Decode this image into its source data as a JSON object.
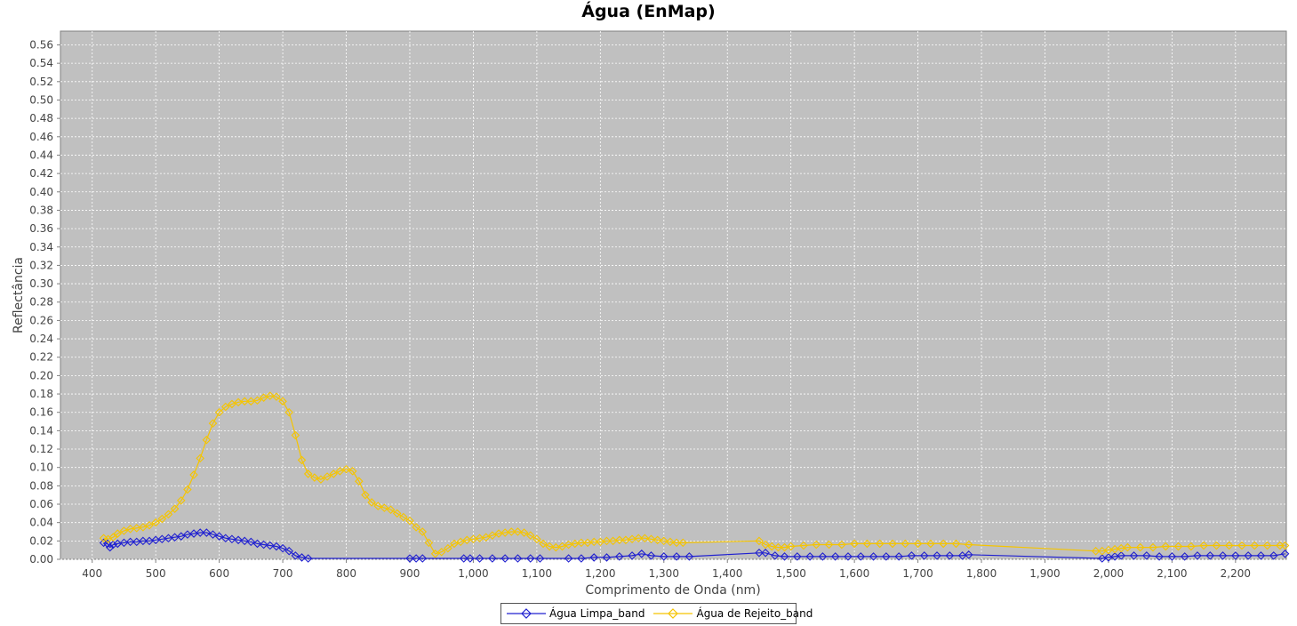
{
  "chart_data": {
    "type": "line",
    "title": "Água (EnMap)",
    "xlabel": "Comprimento de Onda (nm)",
    "ylabel": "Reflectância",
    "xlim": [
      350,
      2280
    ],
    "ylim": [
      0,
      0.575
    ],
    "xticks": [
      400,
      500,
      600,
      700,
      800,
      900,
      1000,
      1100,
      1200,
      1300,
      1400,
      1500,
      1600,
      1700,
      1800,
      1900,
      2000,
      2100,
      2200
    ],
    "xtick_labels": [
      "400",
      "500",
      "600",
      "700",
      "800",
      "900",
      "1,000",
      "1,100",
      "1,200",
      "1,300",
      "1,400",
      "1,500",
      "1,600",
      "1,700",
      "1,800",
      "1,900",
      "2,000",
      "2,100",
      "2,200"
    ],
    "yticks": [
      0,
      0.02,
      0.04,
      0.06,
      0.08,
      0.1,
      0.12,
      0.14,
      0.16,
      0.18,
      0.2,
      0.22,
      0.24,
      0.26,
      0.28,
      0.3,
      0.32,
      0.34,
      0.36,
      0.38,
      0.4,
      0.42,
      0.44,
      0.46,
      0.48,
      0.5,
      0.52,
      0.54,
      0.56
    ],
    "ytick_labels": [
      "0.00",
      "0.02",
      "0.04",
      "0.06",
      "0.08",
      "0.10",
      "0.12",
      "0.14",
      "0.16",
      "0.18",
      "0.20",
      "0.22",
      "0.24",
      "0.26",
      "0.28",
      "0.30",
      "0.32",
      "0.34",
      "0.36",
      "0.38",
      "0.40",
      "0.42",
      "0.44",
      "0.46",
      "0.48",
      "0.50",
      "0.52",
      "0.54",
      "0.56"
    ],
    "grid": true,
    "legend_position": "bottom",
    "background_color": "#c0c0c0",
    "series": [
      {
        "name": "Água Limpa_band",
        "color": "#2020d0",
        "marker": "diamond",
        "points": [
          [
            418,
            0.018
          ],
          [
            424,
            0.017
          ],
          [
            428,
            0.013
          ],
          [
            433,
            0.016
          ],
          [
            440,
            0.017
          ],
          [
            450,
            0.018
          ],
          [
            460,
            0.019
          ],
          [
            470,
            0.019
          ],
          [
            480,
            0.02
          ],
          [
            490,
            0.02
          ],
          [
            500,
            0.021
          ],
          [
            510,
            0.022
          ],
          [
            520,
            0.023
          ],
          [
            530,
            0.024
          ],
          [
            540,
            0.025
          ],
          [
            550,
            0.027
          ],
          [
            560,
            0.028
          ],
          [
            570,
            0.029
          ],
          [
            580,
            0.029
          ],
          [
            590,
            0.027
          ],
          [
            600,
            0.025
          ],
          [
            610,
            0.023
          ],
          [
            620,
            0.022
          ],
          [
            630,
            0.021
          ],
          [
            640,
            0.02
          ],
          [
            650,
            0.019
          ],
          [
            660,
            0.017
          ],
          [
            670,
            0.016
          ],
          [
            680,
            0.015
          ],
          [
            690,
            0.014
          ],
          [
            700,
            0.012
          ],
          [
            710,
            0.009
          ],
          [
            720,
            0.004
          ],
          [
            730,
            0.002
          ],
          [
            740,
            0.001
          ],
          [
            900,
            0.001
          ],
          [
            910,
            0.001
          ],
          [
            920,
            0.001
          ],
          [
            985,
            0.001
          ],
          [
            995,
            0.001
          ],
          [
            1010,
            0.001
          ],
          [
            1030,
            0.001
          ],
          [
            1050,
            0.001
          ],
          [
            1070,
            0.001
          ],
          [
            1090,
            0.001
          ],
          [
            1105,
            0.001
          ],
          [
            1150,
            0.001
          ],
          [
            1170,
            0.001
          ],
          [
            1190,
            0.002
          ],
          [
            1210,
            0.002
          ],
          [
            1230,
            0.003
          ],
          [
            1250,
            0.004
          ],
          [
            1265,
            0.006
          ],
          [
            1280,
            0.004
          ],
          [
            1300,
            0.003
          ],
          [
            1320,
            0.003
          ],
          [
            1340,
            0.003
          ],
          [
            1450,
            0.007
          ],
          [
            1460,
            0.007
          ],
          [
            1475,
            0.004
          ],
          [
            1490,
            0.003
          ],
          [
            1510,
            0.003
          ],
          [
            1530,
            0.003
          ],
          [
            1550,
            0.003
          ],
          [
            1570,
            0.003
          ],
          [
            1590,
            0.003
          ],
          [
            1610,
            0.003
          ],
          [
            1630,
            0.003
          ],
          [
            1650,
            0.003
          ],
          [
            1670,
            0.003
          ],
          [
            1690,
            0.004
          ],
          [
            1710,
            0.004
          ],
          [
            1730,
            0.004
          ],
          [
            1750,
            0.004
          ],
          [
            1770,
            0.004
          ],
          [
            1780,
            0.005
          ],
          [
            1990,
            0.001
          ],
          [
            2000,
            0.002
          ],
          [
            2010,
            0.003
          ],
          [
            2020,
            0.004
          ],
          [
            2040,
            0.004
          ],
          [
            2060,
            0.004
          ],
          [
            2080,
            0.003
          ],
          [
            2100,
            0.003
          ],
          [
            2120,
            0.003
          ],
          [
            2140,
            0.004
          ],
          [
            2160,
            0.004
          ],
          [
            2180,
            0.004
          ],
          [
            2200,
            0.004
          ],
          [
            2220,
            0.004
          ],
          [
            2240,
            0.004
          ],
          [
            2260,
            0.004
          ],
          [
            2278,
            0.006
          ]
        ]
      },
      {
        "name": "Água de Rejeito_band",
        "color": "#f5c400",
        "marker": "diamond",
        "points": [
          [
            418,
            0.023
          ],
          [
            425,
            0.022
          ],
          [
            433,
            0.024
          ],
          [
            440,
            0.028
          ],
          [
            450,
            0.031
          ],
          [
            460,
            0.033
          ],
          [
            470,
            0.034
          ],
          [
            480,
            0.035
          ],
          [
            490,
            0.037
          ],
          [
            500,
            0.04
          ],
          [
            510,
            0.044
          ],
          [
            520,
            0.049
          ],
          [
            530,
            0.055
          ],
          [
            540,
            0.064
          ],
          [
            550,
            0.076
          ],
          [
            560,
            0.092
          ],
          [
            570,
            0.11
          ],
          [
            580,
            0.13
          ],
          [
            590,
            0.148
          ],
          [
            600,
            0.16
          ],
          [
            610,
            0.166
          ],
          [
            620,
            0.169
          ],
          [
            630,
            0.171
          ],
          [
            640,
            0.172
          ],
          [
            650,
            0.172
          ],
          [
            660,
            0.173
          ],
          [
            670,
            0.176
          ],
          [
            680,
            0.178
          ],
          [
            690,
            0.177
          ],
          [
            700,
            0.172
          ],
          [
            710,
            0.16
          ],
          [
            720,
            0.135
          ],
          [
            730,
            0.108
          ],
          [
            740,
            0.093
          ],
          [
            750,
            0.089
          ],
          [
            760,
            0.087
          ],
          [
            770,
            0.09
          ],
          [
            780,
            0.093
          ],
          [
            790,
            0.096
          ],
          [
            800,
            0.098
          ],
          [
            810,
            0.096
          ],
          [
            820,
            0.085
          ],
          [
            830,
            0.07
          ],
          [
            840,
            0.062
          ],
          [
            850,
            0.058
          ],
          [
            860,
            0.056
          ],
          [
            870,
            0.054
          ],
          [
            880,
            0.05
          ],
          [
            890,
            0.046
          ],
          [
            900,
            0.042
          ],
          [
            910,
            0.035
          ],
          [
            920,
            0.03
          ],
          [
            930,
            0.018
          ],
          [
            940,
            0.006
          ],
          [
            950,
            0.008
          ],
          [
            960,
            0.012
          ],
          [
            970,
            0.017
          ],
          [
            980,
            0.019
          ],
          [
            990,
            0.021
          ],
          [
            1000,
            0.022
          ],
          [
            1010,
            0.023
          ],
          [
            1020,
            0.024
          ],
          [
            1030,
            0.026
          ],
          [
            1040,
            0.028
          ],
          [
            1050,
            0.029
          ],
          [
            1060,
            0.03
          ],
          [
            1070,
            0.03
          ],
          [
            1080,
            0.029
          ],
          [
            1090,
            0.026
          ],
          [
            1100,
            0.022
          ],
          [
            1110,
            0.017
          ],
          [
            1120,
            0.014
          ],
          [
            1130,
            0.013
          ],
          [
            1140,
            0.014
          ],
          [
            1150,
            0.016
          ],
          [
            1160,
            0.017
          ],
          [
            1170,
            0.018
          ],
          [
            1180,
            0.018
          ],
          [
            1190,
            0.019
          ],
          [
            1200,
            0.019
          ],
          [
            1210,
            0.02
          ],
          [
            1220,
            0.02
          ],
          [
            1230,
            0.021
          ],
          [
            1240,
            0.021
          ],
          [
            1250,
            0.022
          ],
          [
            1260,
            0.023
          ],
          [
            1270,
            0.023
          ],
          [
            1280,
            0.022
          ],
          [
            1290,
            0.021
          ],
          [
            1300,
            0.02
          ],
          [
            1310,
            0.019
          ],
          [
            1320,
            0.018
          ],
          [
            1330,
            0.018
          ],
          [
            1450,
            0.02
          ],
          [
            1460,
            0.016
          ],
          [
            1470,
            0.014
          ],
          [
            1480,
            0.013
          ],
          [
            1490,
            0.013
          ],
          [
            1500,
            0.014
          ],
          [
            1520,
            0.015
          ],
          [
            1540,
            0.016
          ],
          [
            1560,
            0.016
          ],
          [
            1580,
            0.016
          ],
          [
            1600,
            0.017
          ],
          [
            1620,
            0.017
          ],
          [
            1640,
            0.017
          ],
          [
            1660,
            0.017
          ],
          [
            1680,
            0.017
          ],
          [
            1700,
            0.017
          ],
          [
            1720,
            0.017
          ],
          [
            1740,
            0.017
          ],
          [
            1760,
            0.017
          ],
          [
            1780,
            0.016
          ],
          [
            1980,
            0.009
          ],
          [
            1990,
            0.009
          ],
          [
            2000,
            0.01
          ],
          [
            2010,
            0.011
          ],
          [
            2020,
            0.012
          ],
          [
            2030,
            0.013
          ],
          [
            2050,
            0.013
          ],
          [
            2070,
            0.013
          ],
          [
            2090,
            0.014
          ],
          [
            2110,
            0.014
          ],
          [
            2130,
            0.014
          ],
          [
            2150,
            0.015
          ],
          [
            2170,
            0.015
          ],
          [
            2190,
            0.015
          ],
          [
            2210,
            0.015
          ],
          [
            2230,
            0.015
          ],
          [
            2250,
            0.015
          ],
          [
            2270,
            0.015
          ],
          [
            2278,
            0.015
          ]
        ]
      }
    ]
  }
}
